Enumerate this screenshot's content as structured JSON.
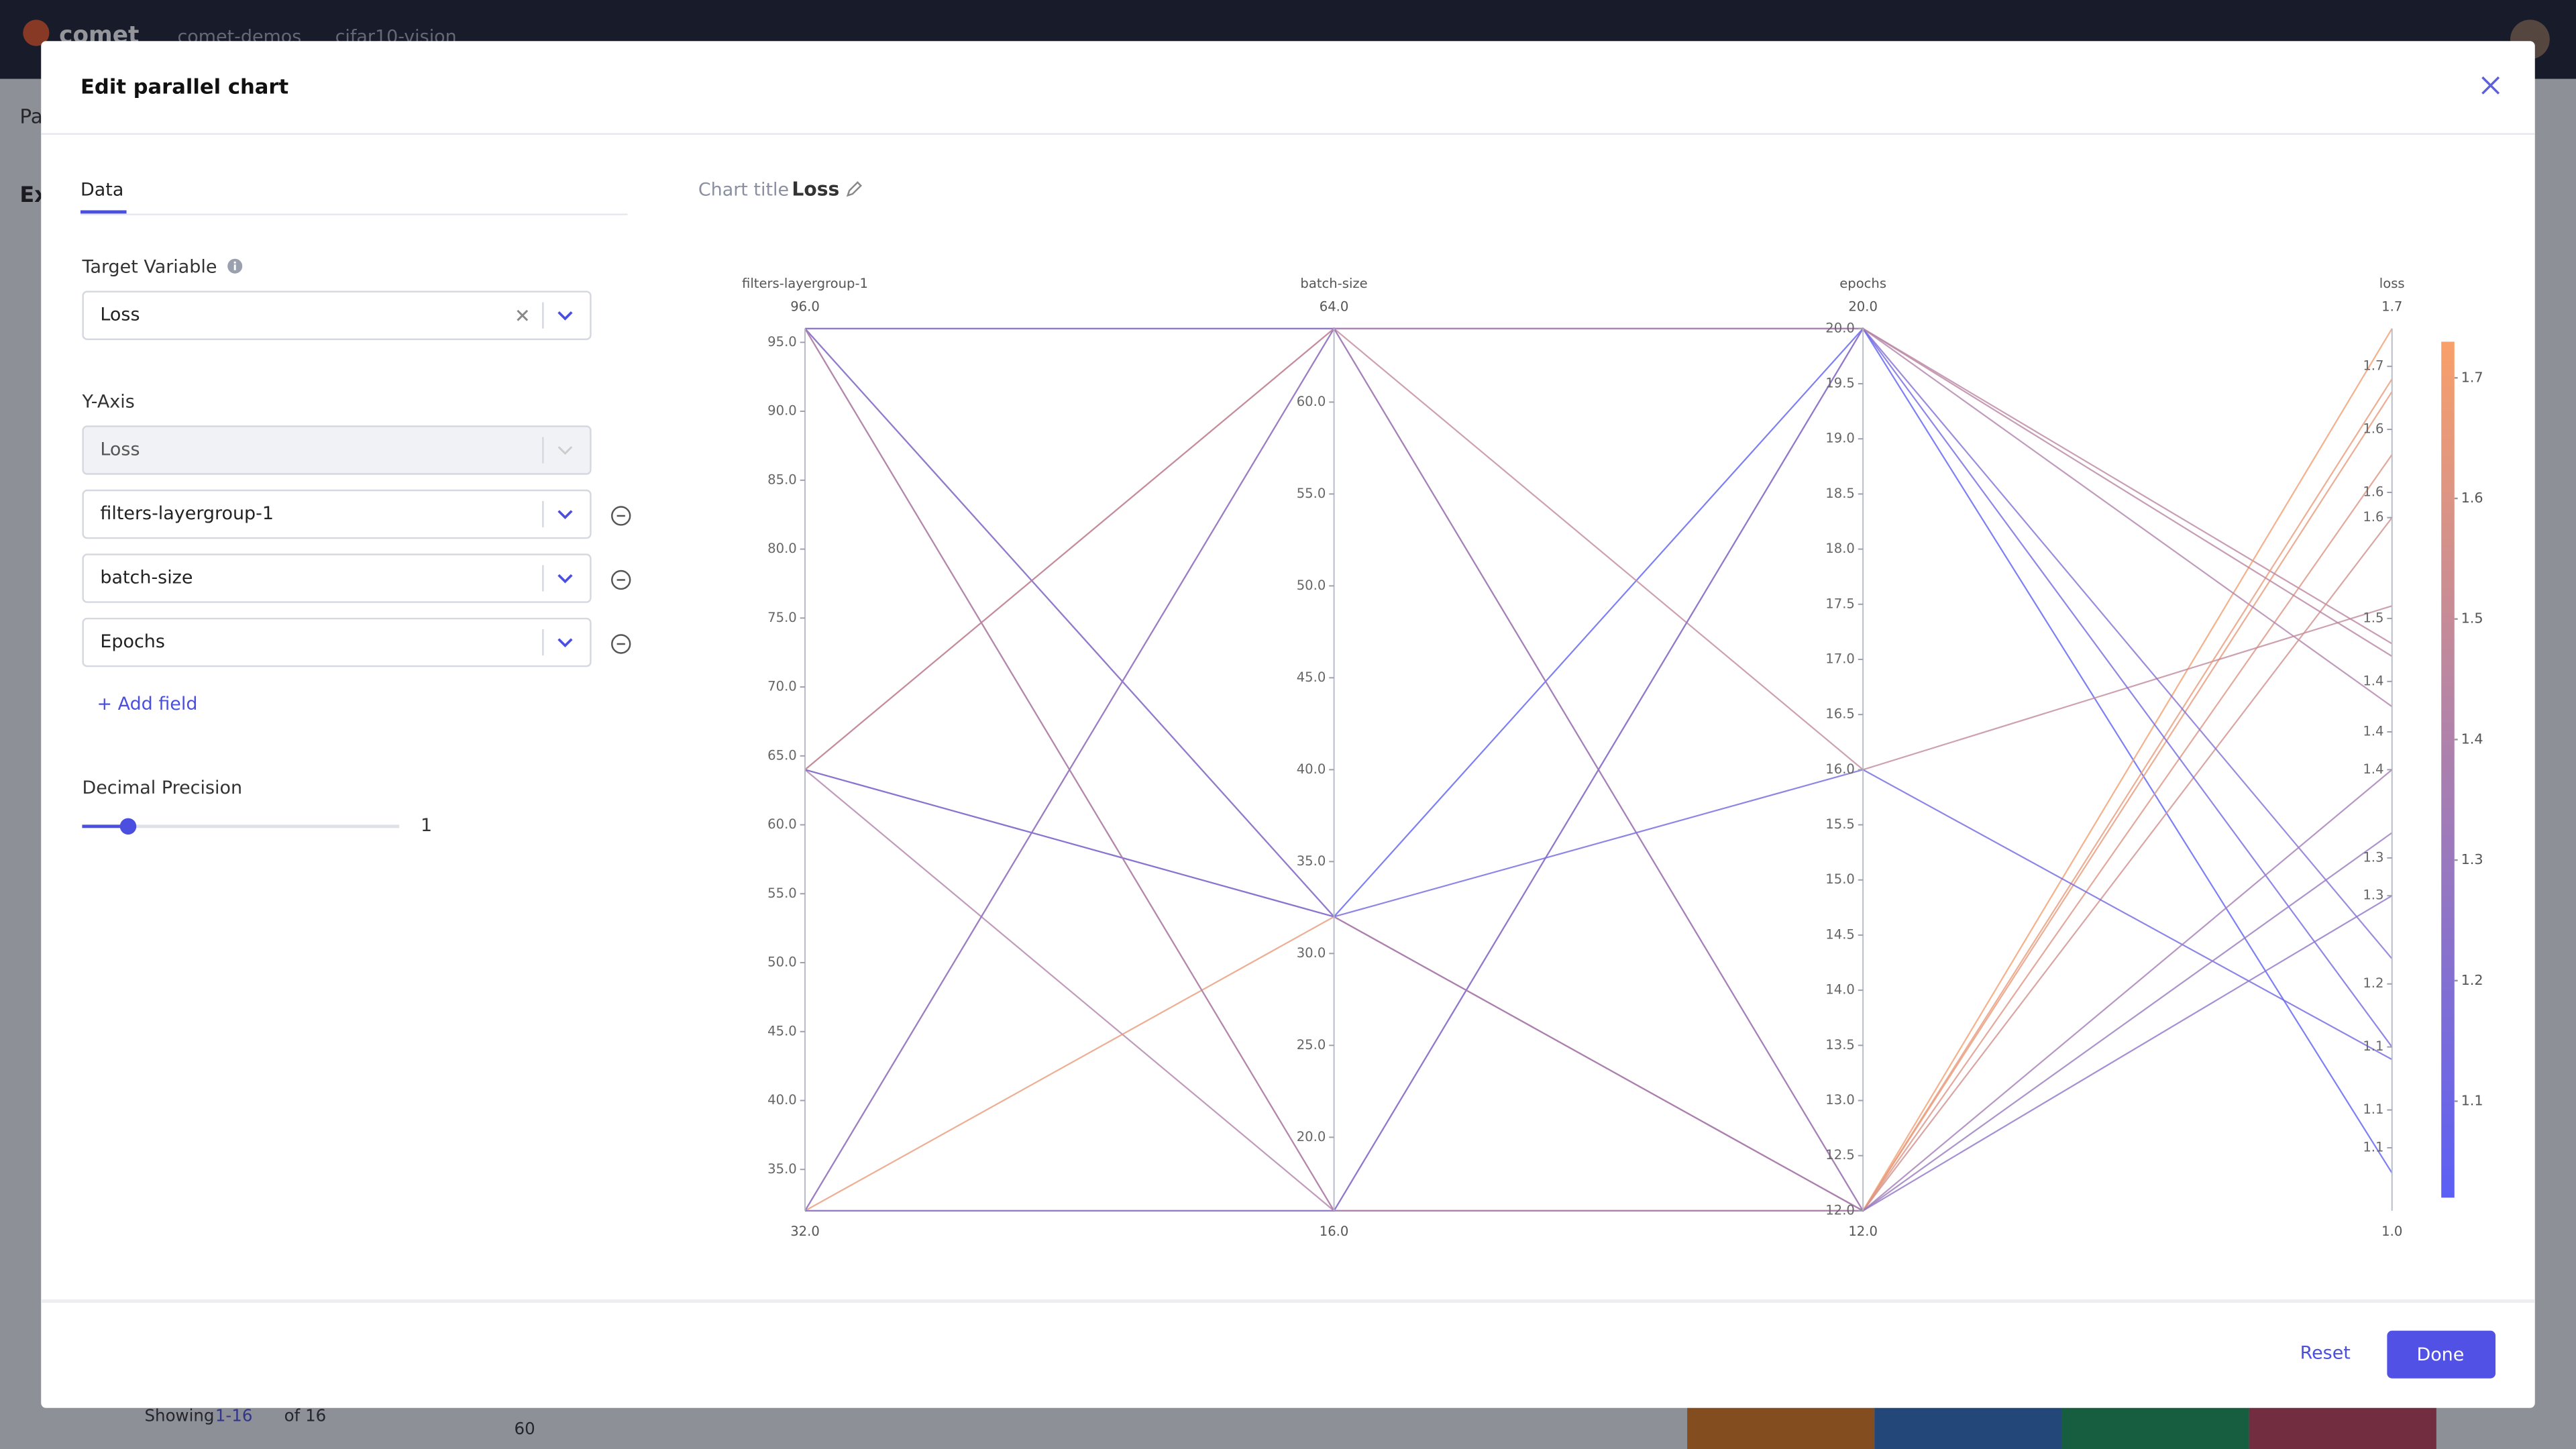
{
  "app": {
    "logo": "comet",
    "breadcrumb": [
      "comet-demos",
      "cifar10-vision"
    ],
    "bg_tab": "Pa",
    "bg_heading": "Ex",
    "pager": {
      "label": "Showing",
      "range": "1-16",
      "total": "of 16"
    },
    "bg_axis_tick": "60"
  },
  "dialog": {
    "title": "Edit parallel chart",
    "tab": "Data",
    "target_label": "Target Variable",
    "target_value": "Loss",
    "yaxis_label": "Y-Axis",
    "yaxis_fields": [
      "Loss",
      "filters-layergroup-1",
      "batch-size",
      "Epochs"
    ],
    "add_field": "+ Add field",
    "precision_label": "Decimal Precision",
    "precision_value": 1,
    "reset": "Reset",
    "done": "Done"
  },
  "chart": {
    "type": "parallel",
    "title_label": "Chart title",
    "title": "Loss",
    "colors": [
      "#5b5ff5",
      "#f9a06a"
    ],
    "axes": [
      {
        "name": "filters-layergroup-1",
        "lim": [
          {
            "value": 32,
            "label": "32.0"
          },
          {
            "value": 96,
            "label": "96.0"
          }
        ],
        "ticks": [
          {
            "value": 35,
            "label": "35.0"
          },
          {
            "value": 40,
            "label": "40.0"
          },
          {
            "value": 45,
            "label": "45.0"
          },
          {
            "value": 50,
            "label": "50.0"
          },
          {
            "value": 55,
            "label": "55.0"
          },
          {
            "value": 60,
            "label": "60.0"
          },
          {
            "value": 65,
            "label": "65.0"
          },
          {
            "value": 70,
            "label": "70.0"
          },
          {
            "value": 75,
            "label": "75.0"
          },
          {
            "value": 80,
            "label": "80.0"
          },
          {
            "value": 85,
            "label": "85.0"
          },
          {
            "value": 90,
            "label": "90.0"
          },
          {
            "value": 95,
            "label": "95.0"
          }
        ]
      },
      {
        "name": "batch-size",
        "lim": [
          {
            "value": 16,
            "label": "16.0"
          },
          {
            "value": 64,
            "label": "64.0"
          }
        ],
        "ticks": [
          {
            "value": 20,
            "label": "20.0"
          },
          {
            "value": 25,
            "label": "25.0"
          },
          {
            "value": 30,
            "label": "30.0"
          },
          {
            "value": 35,
            "label": "35.0"
          },
          {
            "value": 40,
            "label": "40.0"
          },
          {
            "value": 45,
            "label": "45.0"
          },
          {
            "value": 50,
            "label": "50.0"
          },
          {
            "value": 55,
            "label": "55.0"
          },
          {
            "value": 60,
            "label": "60.0"
          }
        ]
      },
      {
        "name": "epochs",
        "lim": [
          {
            "value": 12,
            "label": "12.0"
          },
          {
            "value": 20,
            "label": "20.0"
          }
        ],
        "ticks": [
          {
            "value": 12,
            "label": "12.0"
          },
          {
            "value": 12.5,
            "label": "12.5"
          },
          {
            "value": 13,
            "label": "13.0"
          },
          {
            "value": 13.5,
            "label": "13.5"
          },
          {
            "value": 14,
            "label": "14.0"
          },
          {
            "value": 14.5,
            "label": "14.5"
          },
          {
            "value": 15,
            "label": "15.0"
          },
          {
            "value": 15.5,
            "label": "15.5"
          },
          {
            "value": 16,
            "label": "16.0"
          },
          {
            "value": 16.5,
            "label": "16.5"
          },
          {
            "value": 17,
            "label": "17.0"
          },
          {
            "value": 17.5,
            "label": "17.5"
          },
          {
            "value": 18,
            "label": "18.0"
          },
          {
            "value": 18.5,
            "label": "18.5"
          },
          {
            "value": 19,
            "label": "19.0"
          },
          {
            "value": 19.5,
            "label": "19.5"
          },
          {
            "value": 20,
            "label": "20.0"
          }
        ]
      },
      {
        "name": "loss",
        "lim": [
          {
            "value": 1.0,
            "label": "1.0"
          },
          {
            "value": 1.7,
            "label": "1.7"
          }
        ],
        "ticks": [
          {
            "value": 1.05,
            "label": "1.1"
          },
          {
            "value": 1.08,
            "label": "1.1"
          },
          {
            "value": 1.13,
            "label": "1.1"
          },
          {
            "value": 1.18,
            "label": "1.2"
          },
          {
            "value": 1.25,
            "label": "1.3"
          },
          {
            "value": 1.28,
            "label": "1.3"
          },
          {
            "value": 1.35,
            "label": "1.4"
          },
          {
            "value": 1.38,
            "label": "1.4"
          },
          {
            "value": 1.42,
            "label": "1.4"
          },
          {
            "value": 1.47,
            "label": "1.5"
          },
          {
            "value": 1.55,
            "label": "1.6"
          },
          {
            "value": 1.57,
            "label": "1.6"
          },
          {
            "value": 1.62,
            "label": "1.6"
          },
          {
            "value": 1.67,
            "label": "1.7"
          }
        ]
      }
    ],
    "runs": [
      [
        96,
        32,
        20,
        1.03
      ],
      [
        96,
        16,
        12,
        1.65
      ],
      [
        96,
        64,
        20,
        1.45
      ],
      [
        64,
        64,
        12,
        1.7
      ],
      [
        64,
        32,
        12,
        1.6
      ],
      [
        64,
        16,
        20,
        1.4
      ],
      [
        32,
        64,
        16,
        1.48
      ],
      [
        32,
        32,
        12,
        1.66
      ],
      [
        32,
        16,
        12,
        1.55
      ],
      [
        96,
        64,
        20,
        1.13
      ],
      [
        32,
        16,
        20,
        1.2
      ],
      [
        64,
        32,
        16,
        1.12
      ],
      [
        96,
        16,
        12,
        1.35
      ],
      [
        32,
        64,
        12,
        1.25
      ],
      [
        64,
        64,
        20,
        1.44
      ],
      [
        96,
        32,
        12,
        1.3
      ]
    ],
    "colorbar": {
      "lim": [
        1.02,
        1.73
      ],
      "ticks": [
        1.1,
        1.2,
        1.3,
        1.4,
        1.5,
        1.6,
        1.7
      ]
    }
  }
}
